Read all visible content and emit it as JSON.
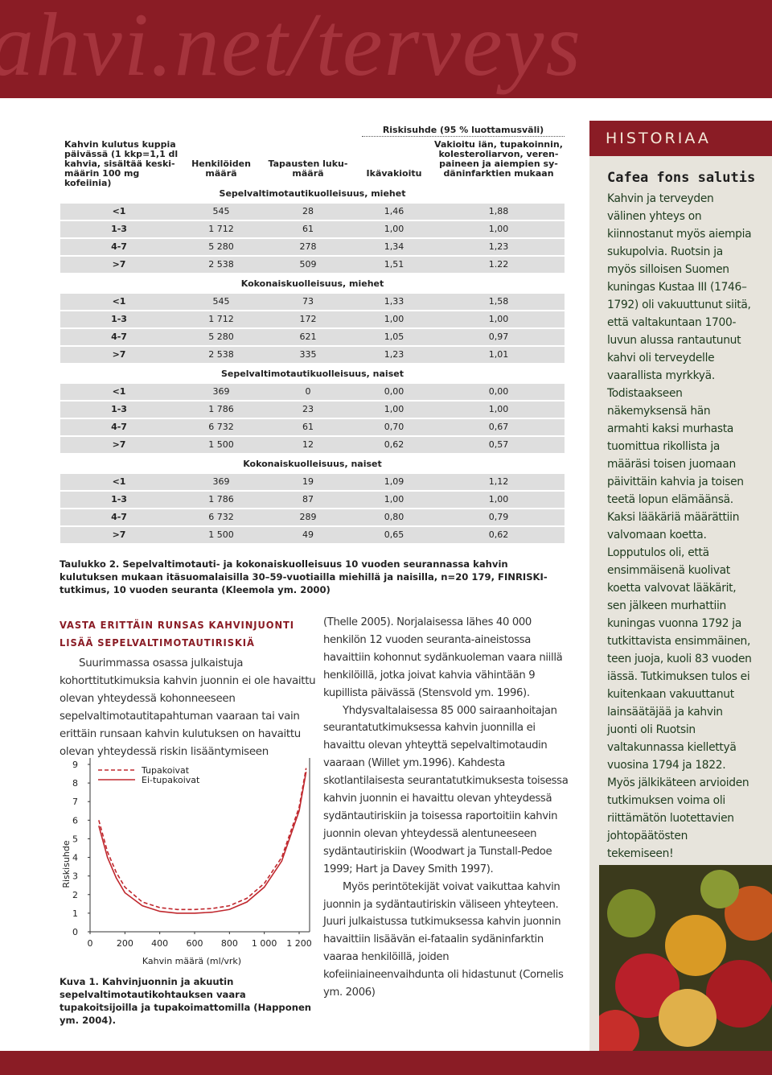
{
  "header": {
    "site": "ahvi.net/terveys"
  },
  "table": {
    "group_header": "Riskisuhde (95 % luottamusväli)",
    "columns": [
      [
        "Kahvin kulutus kuppia",
        "päivässä (1 kkp=1,1 dl",
        "kahvia, sisältää keski-",
        "määrin 100 mg kofeiinia)"
      ],
      [
        "Henkilöiden",
        "määrä"
      ],
      [
        "Tapausten luku-",
        "määrä"
      ],
      [
        "Ikävakioitu"
      ],
      [
        "Vakioitu iän, tupakoinnin,",
        "kolesteroliarvon, veren-",
        "paineen ja aiempien sy-",
        "däninfarktien mukaan"
      ]
    ],
    "sections": [
      {
        "title": "Sepelvaltimotautikuolleisuus, miehet",
        "rows": [
          [
            "<1",
            "545",
            "28",
            "1,46",
            "1,88"
          ],
          [
            "1-3",
            "1 712",
            "61",
            "1,00",
            "1,00"
          ],
          [
            "4-7",
            "5 280",
            "278",
            "1,34",
            "1,23"
          ],
          [
            ">7",
            "2 538",
            "509",
            "1,51",
            "1.22"
          ]
        ]
      },
      {
        "title": "Kokonaiskuolleisuus, miehet",
        "rows": [
          [
            "<1",
            "545",
            "73",
            "1,33",
            "1,58"
          ],
          [
            "1-3",
            "1 712",
            "172",
            "1,00",
            "1,00"
          ],
          [
            "4-7",
            "5 280",
            "621",
            "1,05",
            "0,97"
          ],
          [
            ">7",
            "2 538",
            "335",
            "1,23",
            "1,01"
          ]
        ]
      },
      {
        "title": "Sepelvaltimotautikuolleisuus, naiset",
        "rows": [
          [
            "<1",
            "369",
            "0",
            "0,00",
            "0,00"
          ],
          [
            "1-3",
            "1 786",
            "23",
            "1,00",
            "1,00"
          ],
          [
            "4-7",
            "6 732",
            "61",
            "0,70",
            "0,67"
          ],
          [
            ">7",
            "1 500",
            "12",
            "0,62",
            "0,57"
          ]
        ]
      },
      {
        "title": "Kokonaiskuolleisuus, naiset",
        "rows": [
          [
            "<1",
            "369",
            "19",
            "1,09",
            "1,12"
          ],
          [
            "1-3",
            "1 786",
            "87",
            "1,00",
            "1,00"
          ],
          [
            "4-7",
            "6 732",
            "289",
            "0,80",
            "0,79"
          ],
          [
            ">7",
            "1 500",
            "49",
            "0,65",
            "0,62"
          ]
        ]
      }
    ],
    "caption": "Taulukko 2. Sepelvaltimotauti- ja kokonaiskuolleisuus 10 vuoden seurannassa kahvin kulutuksen mukaan itäsuomalaisilla 30–59-vuotiailla miehillä ja naisilla, n=20 179, FINRISKI-tutkimus, 10 vuoden seuranta (Kleemola ym. 2000)"
  },
  "article": {
    "heading": [
      "VASTA ERITTÄIN RUNSAS KAHVINJUONTI",
      "LISÄÄ SEPELVALTIMOTAUTIRISKIÄ"
    ],
    "intro": "Suurimmassa osassa julkaistuja kohorttitutkimuksia kahvin juonnin ei ole havaittu olevan yhteydessä kohonneeseen sepelvaltimotautitapahtuman vaaraan tai vain erittäin runsaan kahvin kulutuksen on havaittu olevan yhteydessä riskin lisääntymiseen",
    "paragraphs": [
      "(Thelle 2005). Norjalaisessa lähes 40 000 henkilön 12 vuoden seuranta-aineistossa havaittiin kohonnut sydänkuoleman vaara niillä henkilöillä, jotka joivat kahvia vähintään 9 kupillista päivässä (Stensvold ym. 1996).",
      "Yhdysvaltalaisessa 85 000 sairaanhoitajan seurantatutkimuksessa kahvin juonnilla ei havaittu olevan yhteyttä sepelvaltimotaudin vaaraan (Willet ym.1996). Kahdesta skotlantilaisesta seurantatutkimuksesta toisessa kahvin juonnin ei havaittu olevan yhteydessä sydäntautiriskiin ja toisessa raportoitiin kahvin juonnin olevan yhteydessä alentuneeseen sydäntautiriskiin (Woodwart ja Tunstall-Pedoe 1999; Hart ja Davey Smith 1997).",
      "Myös perintötekijät voivat vaikuttaa kahvin juonnin ja sydäntautiriskin väliseen yhteyteen. Juuri julkaistussa tutkimuksessa kahvin juonnin havaittiin lisäävän ei-fataalin sydäninfarktin vaaraa henkilöillä, joiden kofeiiniaineenvaihdunta oli hidastunut (Cornelis ym. 2006)"
    ],
    "figure_caption": "Kuva 1. Kahvinjuonnin ja akuutin sepelvaltimotautikohtauksen vaara tupakoitsijoilla ja tupakoimattomilla (Happonen ym. 2004)."
  },
  "chart_data": {
    "type": "line",
    "xlabel": "Kahvin määrä (ml/vrk)",
    "ylabel": "Riskisuhde",
    "xlim": [
      0,
      1260
    ],
    "ylim": [
      0,
      9
    ],
    "xticks": [
      0,
      200,
      400,
      600,
      800,
      {
        "value": 1000,
        "label": "1 000"
      },
      {
        "value": 1200,
        "label": "1 200"
      }
    ],
    "yticks": [
      0,
      1,
      2,
      3,
      4,
      5,
      6,
      7,
      8,
      9
    ],
    "x": [
      50,
      100,
      150,
      200,
      300,
      400,
      500,
      600,
      700,
      800,
      900,
      1000,
      1100,
      1200,
      1240
    ],
    "series": [
      {
        "name": "Tupakoivat",
        "color": "#c0282e",
        "dash": true,
        "values": [
          6.0,
          4.3,
          3.2,
          2.4,
          1.6,
          1.3,
          1.2,
          1.2,
          1.25,
          1.4,
          1.8,
          2.6,
          4.0,
          6.7,
          8.8
        ]
      },
      {
        "name": "Ei-tupakoivat",
        "color": "#c0282e",
        "dash": false,
        "values": [
          5.7,
          4.0,
          2.9,
          2.1,
          1.4,
          1.1,
          1.0,
          1.0,
          1.05,
          1.2,
          1.6,
          2.4,
          3.8,
          6.5,
          8.6
        ]
      }
    ]
  },
  "sidebar": {
    "title": "HISTORIAA",
    "subtitle": "Cafea fons salutis",
    "text": "Kahvin ja terveyden välinen yhteys on kiinnostanut myös aiempia sukupolvia. Ruotsin ja myös silloisen Suomen kuningas Kustaa III (1746–1792) oli vakuuttunut siitä, että valtakuntaan 1700-luvun alussa rantautunut kahvi oli terveydelle vaarallista myrkkyä. Todistaakseen näkemyksensä hän armahti kaksi murhasta tuomittua rikollista ja määräsi toisen juomaan päivittäin kahvia ja toisen teetä lopun elämäänsä. Kaksi lääkäriä määrättiin valvomaan koetta. Lopputulos oli, että ensimmäisenä kuolivat koetta valvovat lääkärit, sen jälkeen murhattiin kuningas vuonna 1792 ja tutkittavista ensimmäinen, teen juoja, kuoli 83 vuoden iässä. Tutkimuksen tulos ei kuitenkaan vakuuttanut lainsäätäjää ja kahvin juonti oli Ruotsin valtakunnassa kiellettyä vuosina 1794 ja 1822. Myös jälkikäteen arvioiden tutkimuksen voima oli riittämätön luotettavien johtopäätösten tekemiseen!"
  }
}
